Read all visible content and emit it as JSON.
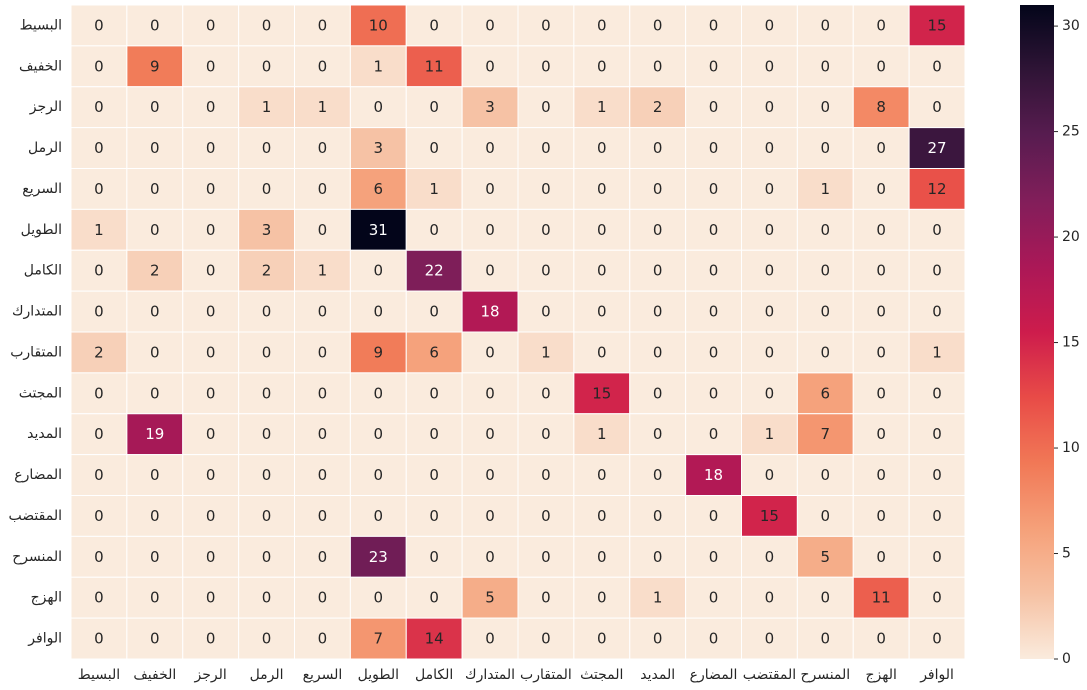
{
  "chart_data": {
    "type": "heatmap",
    "title": "",
    "xlabel": "",
    "ylabel": "",
    "row_labels": [
      "البسيط",
      "الخفيف",
      "الرجز",
      "الرمل",
      "السريع",
      "الطويل",
      "الكامل",
      "المتدارك",
      "المتقارب",
      "المجتث",
      "المديد",
      "المضارع",
      "المقتضب",
      "المنسرح",
      "الهزج",
      "الوافر"
    ],
    "col_labels": [
      "البسيط",
      "الخفيف",
      "الرجز",
      "الرمل",
      "السريع",
      "الطويل",
      "الكامل",
      "المتدارك",
      "المتقارب",
      "المجتث",
      "المديد",
      "المضارع",
      "المقتضب",
      "المنسرح",
      "الهزج",
      "الوافر"
    ],
    "values": [
      [
        0,
        0,
        0,
        0,
        0,
        10,
        0,
        0,
        0,
        0,
        0,
        0,
        0,
        0,
        0,
        15
      ],
      [
        0,
        9,
        0,
        0,
        0,
        1,
        11,
        0,
        0,
        0,
        0,
        0,
        0,
        0,
        0,
        0
      ],
      [
        0,
        0,
        0,
        1,
        1,
        0,
        0,
        3,
        0,
        1,
        2,
        0,
        0,
        0,
        8,
        0
      ],
      [
        0,
        0,
        0,
        0,
        0,
        3,
        0,
        0,
        0,
        0,
        0,
        0,
        0,
        0,
        0,
        27
      ],
      [
        0,
        0,
        0,
        0,
        0,
        6,
        1,
        0,
        0,
        0,
        0,
        0,
        0,
        1,
        0,
        12
      ],
      [
        1,
        0,
        0,
        3,
        0,
        31,
        0,
        0,
        0,
        0,
        0,
        0,
        0,
        0,
        0,
        0
      ],
      [
        0,
        2,
        0,
        2,
        1,
        0,
        22,
        0,
        0,
        0,
        0,
        0,
        0,
        0,
        0,
        0
      ],
      [
        0,
        0,
        0,
        0,
        0,
        0,
        0,
        18,
        0,
        0,
        0,
        0,
        0,
        0,
        0,
        0
      ],
      [
        2,
        0,
        0,
        0,
        0,
        9,
        6,
        0,
        1,
        0,
        0,
        0,
        0,
        0,
        0,
        1
      ],
      [
        0,
        0,
        0,
        0,
        0,
        0,
        0,
        0,
        0,
        15,
        0,
        0,
        0,
        6,
        0,
        0
      ],
      [
        0,
        19,
        0,
        0,
        0,
        0,
        0,
        0,
        0,
        1,
        0,
        0,
        1,
        7,
        0,
        0
      ],
      [
        0,
        0,
        0,
        0,
        0,
        0,
        0,
        0,
        0,
        0,
        0,
        18,
        0,
        0,
        0,
        0
      ],
      [
        0,
        0,
        0,
        0,
        0,
        0,
        0,
        0,
        0,
        0,
        0,
        0,
        15,
        0,
        0,
        0
      ],
      [
        0,
        0,
        0,
        0,
        0,
        23,
        0,
        0,
        0,
        0,
        0,
        0,
        0,
        5,
        0,
        0
      ],
      [
        0,
        0,
        0,
        0,
        0,
        0,
        0,
        5,
        0,
        0,
        1,
        0,
        0,
        0,
        11,
        0
      ],
      [
        0,
        0,
        0,
        0,
        0,
        7,
        14,
        0,
        0,
        0,
        0,
        0,
        0,
        0,
        0,
        0
      ]
    ],
    "vmin": 0,
    "vmax": 31,
    "colorbar_ticks": [
      0,
      5,
      10,
      15,
      20,
      25,
      30
    ],
    "colormap": "rocket_r",
    "legend_position": "right"
  }
}
